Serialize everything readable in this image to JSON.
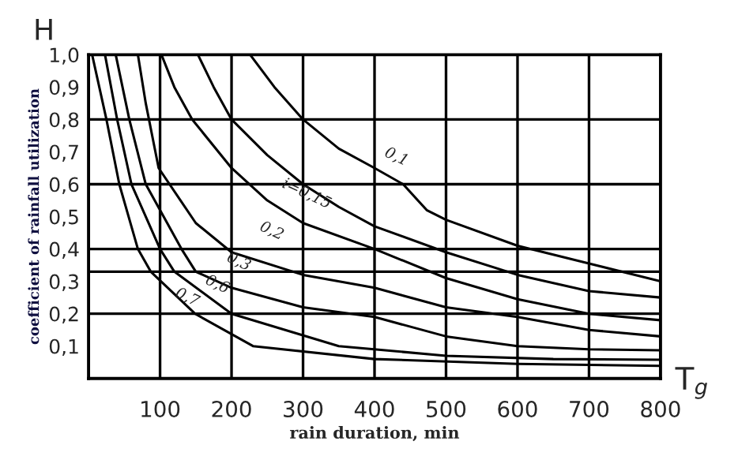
{
  "chart_data": {
    "type": "line",
    "xlabel": "rain duration, min",
    "ylabel": "coefficient of rainfall utilization",
    "xlim": [
      0,
      800
    ],
    "ylim": [
      0,
      1.0
    ],
    "xticks": [
      100,
      200,
      300,
      400,
      500,
      600,
      700,
      800
    ],
    "yticks": [
      {
        "value": 0.1,
        "label": "0,1"
      },
      {
        "value": 0.2,
        "label": "0,2"
      },
      {
        "value": 0.3,
        "label": "0,3"
      },
      {
        "value": 0.4,
        "label": "0,4"
      },
      {
        "value": 0.5,
        "label": "0,5"
      },
      {
        "value": 0.6,
        "label": "0,6"
      },
      {
        "value": 0.7,
        "label": "0,7"
      },
      {
        "value": 0.8,
        "label": "0,8"
      },
      {
        "value": 0.9,
        "label": "0,9"
      },
      {
        "value": 1.0,
        "label": "1,0"
      }
    ],
    "grid": "x",
    "marker": "none",
    "line_style": "solid",
    "ref_lines": [
      {
        "axis": "y",
        "value": 0.8,
        "color": "#000000"
      },
      {
        "axis": "y",
        "value": 0.6,
        "color": "#000000"
      },
      {
        "axis": "y",
        "value": 0.4,
        "color": "#000000"
      },
      {
        "axis": "y",
        "value": 0.33,
        "color": "#000000"
      },
      {
        "axis": "y",
        "value": 0.2,
        "color": "#000000"
      }
    ],
    "series": [
      {
        "color": "#000000",
        "x": [
          226,
          260,
          300,
          350,
          400,
          440,
          473,
          500,
          600,
          700,
          800
        ],
        "values": [
          1.0,
          0.9,
          0.8,
          0.71,
          0.65,
          0.6,
          0.52,
          0.49,
          0.41,
          0.355,
          0.3
        ]
      },
      {
        "color": "#000000",
        "x": [
          153,
          175,
          200,
          250,
          300,
          350,
          400,
          500,
          600,
          700,
          800
        ],
        "values": [
          1.0,
          0.9,
          0.8,
          0.69,
          0.6,
          0.53,
          0.47,
          0.39,
          0.32,
          0.27,
          0.25
        ]
      },
      {
        "color": "#000000",
        "x": [
          102,
          120,
          145,
          200,
          250,
          300,
          400,
          500,
          600,
          700,
          800
        ],
        "values": [
          1.0,
          0.9,
          0.8,
          0.65,
          0.55,
          0.48,
          0.4,
          0.31,
          0.245,
          0.2,
          0.18
        ]
      },
      {
        "color": "#000000",
        "x": [
          69,
          80,
          98,
          150,
          200,
          300,
          400,
          500,
          600,
          700,
          800
        ],
        "values": [
          1.0,
          0.85,
          0.65,
          0.48,
          0.39,
          0.32,
          0.28,
          0.22,
          0.19,
          0.15,
          0.13
        ]
      },
      {
        "color": "#000000",
        "x": [
          38,
          57,
          80,
          130,
          150,
          200,
          300,
          400,
          500,
          600,
          700,
          800
        ],
        "values": [
          1.0,
          0.8,
          0.6,
          0.4,
          0.33,
          0.28,
          0.22,
          0.19,
          0.13,
          0.1,
          0.09,
          0.087
        ]
      },
      {
        "color": "#000000",
        "x": [
          23,
          40,
          60,
          100,
          120,
          200,
          350,
          500,
          650,
          800
        ],
        "values": [
          1.0,
          0.8,
          0.6,
          0.4,
          0.33,
          0.2,
          0.1,
          0.07,
          0.06,
          0.058
        ]
      },
      {
        "color": "#000000",
        "x": [
          5,
          25,
          43,
          69,
          87,
          149,
          230,
          400,
          600,
          800
        ],
        "values": [
          1.0,
          0.8,
          0.6,
          0.4,
          0.33,
          0.2,
          0.1,
          0.06,
          0.045,
          0.039
        ]
      }
    ],
    "annotations": [
      "H",
      "T$_{g}$",
      {
        "text": "0,1",
        "x": 400,
        "y": 0.65
      },
      {
        "text": "i=0,15",
        "x": 305,
        "y": 0.57
      },
      {
        "text": "0,2",
        "x": 250,
        "y": 0.55
      },
      {
        "text": "0,3",
        "x": 210,
        "y": 0.36
      },
      {
        "text": "0,6",
        "x": 180,
        "y": 0.29
      },
      {
        "text": "0,7",
        "x": 138,
        "y": 0.25
      }
    ]
  }
}
